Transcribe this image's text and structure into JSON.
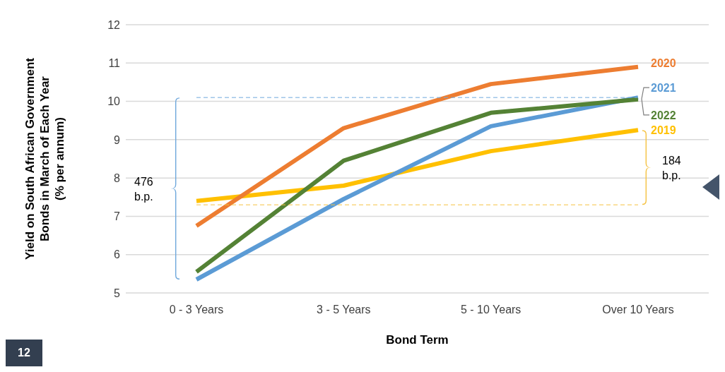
{
  "chart_data": {
    "type": "line",
    "ylabel": "Yield on South African Government\nBonds in March of Each Year\n(% per annum)",
    "xlabel": "Bond Term",
    "categories": [
      "0 - 3 Years",
      "3 - 5 Years",
      "5 - 10 Years",
      "Over 10 Years"
    ],
    "series": [
      {
        "name": "2019",
        "color": "#ffc000",
        "values": [
          7.4,
          7.8,
          8.7,
          9.25
        ]
      },
      {
        "name": "2020",
        "color": "#ed7d31",
        "values": [
          6.75,
          9.3,
          10.45,
          10.9
        ]
      },
      {
        "name": "2021",
        "color": "#5b9bd5",
        "values": [
          5.35,
          7.45,
          9.35,
          10.1
        ]
      },
      {
        "name": "2022",
        "color": "#548235",
        "values": [
          5.55,
          8.45,
          9.7,
          10.05
        ]
      }
    ],
    "ylim": [
      5,
      12
    ],
    "yticks": [
      5,
      6,
      7,
      8,
      9,
      10,
      11,
      12
    ],
    "grid": "y",
    "marker": "none",
    "line_style": "solid",
    "ref_lines": [
      {
        "axis": "y",
        "value": 10.1,
        "color": "#6fa8dc",
        "line_style": "dashed"
      },
      {
        "axis": "y",
        "value": 7.3,
        "color": "#f5c242",
        "line_style": "dashed"
      }
    ],
    "annotations": [
      "476 b.p.",
      "184 b.p.",
      "12"
    ]
  }
}
